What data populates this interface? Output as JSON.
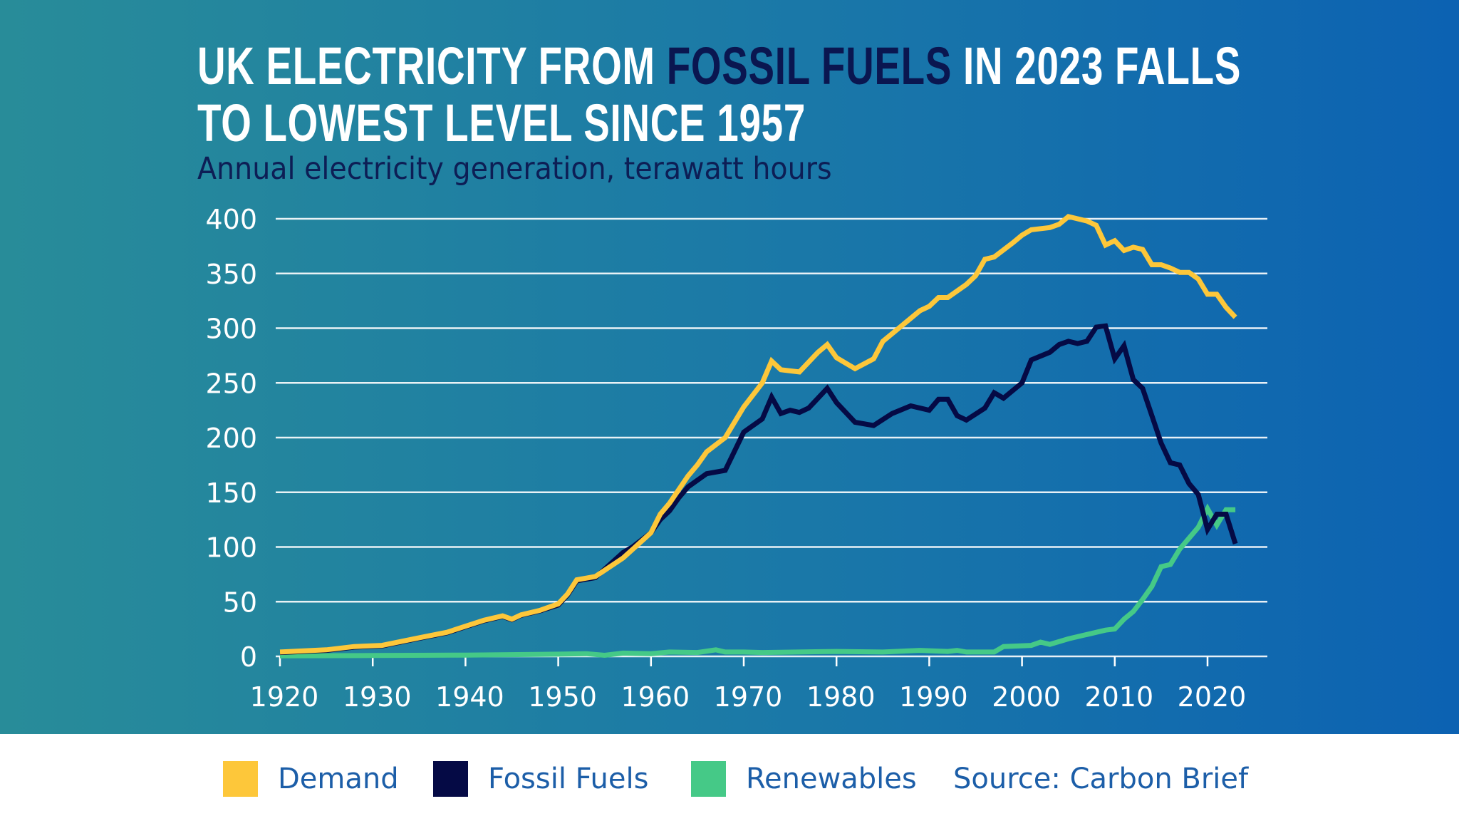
{
  "title": {
    "line1_pre": "UK ELECTRICITY FROM ",
    "line1_highlight": "FOSSIL FUELS",
    "line1_post": " IN 2023 FALLS",
    "line2": "TO LOWEST LEVEL SINCE 1957"
  },
  "subtitle": "Annual electricity generation, terawatt hours",
  "source": "Source: Carbon Brief",
  "colors": {
    "background_left": "#288c99",
    "background_right": "#0c62b2",
    "highlight": "#0a1650",
    "legend_text": "#1c5ea8"
  },
  "chart_data": {
    "type": "line",
    "title": "UK ELECTRICITY FROM FOSSIL FUELS IN 2023 FALLS TO LOWEST LEVEL SINCE 1957",
    "subtitle": "Annual electricity generation, terawatt hours",
    "xlabel": "",
    "ylabel": "",
    "xlim": [
      1920,
      2023
    ],
    "ylim": [
      0,
      400
    ],
    "xticks": [
      1920,
      1930,
      1940,
      1950,
      1960,
      1970,
      1980,
      1990,
      2000,
      2010,
      2020
    ],
    "yticks": [
      0,
      50,
      100,
      150,
      200,
      250,
      300,
      350,
      400
    ],
    "grid": "horizontal",
    "legend": "bottom",
    "series": [
      {
        "name": "Renewables",
        "color": "#45c987",
        "points": [
          [
            1920,
            0.5
          ],
          [
            1930,
            0.8
          ],
          [
            1940,
            1.2
          ],
          [
            1950,
            2
          ],
          [
            1953,
            2.5
          ],
          [
            1955,
            1
          ],
          [
            1957,
            3
          ],
          [
            1960,
            2.5
          ],
          [
            1962,
            4
          ],
          [
            1965,
            3.5
          ],
          [
            1967,
            6
          ],
          [
            1968,
            4
          ],
          [
            1970,
            4
          ],
          [
            1972,
            3.5
          ],
          [
            1980,
            4.5
          ],
          [
            1985,
            4
          ],
          [
            1989,
            5.5
          ],
          [
            1992,
            4.5
          ],
          [
            1993,
            5.5
          ],
          [
            1994,
            4
          ],
          [
            1997,
            4
          ],
          [
            1998,
            9
          ],
          [
            2001,
            10
          ],
          [
            2002,
            13
          ],
          [
            2003,
            11
          ],
          [
            2005,
            16
          ],
          [
            2007,
            20
          ],
          [
            2009,
            24
          ],
          [
            2010,
            25
          ],
          [
            2011,
            34
          ],
          [
            2012,
            41
          ],
          [
            2013,
            52
          ],
          [
            2014,
            64
          ],
          [
            2015,
            82
          ],
          [
            2016,
            84
          ],
          [
            2017,
            98
          ],
          [
            2018,
            108
          ],
          [
            2019,
            118
          ],
          [
            2020,
            135
          ],
          [
            2021,
            120
          ],
          [
            2022,
            134
          ],
          [
            2023,
            134
          ]
        ]
      },
      {
        "name": "Fossil Fuels",
        "color": "#050a45",
        "points": [
          [
            1920,
            3.5
          ],
          [
            1925,
            5.5
          ],
          [
            1928,
            8.5
          ],
          [
            1931,
            9.5
          ],
          [
            1935,
            16.5
          ],
          [
            1938,
            21.5
          ],
          [
            1942,
            32.5
          ],
          [
            1944,
            36.5
          ],
          [
            1945,
            33.5
          ],
          [
            1946,
            37.5
          ],
          [
            1948,
            41.5
          ],
          [
            1950,
            47
          ],
          [
            1951,
            56
          ],
          [
            1952,
            69
          ],
          [
            1954,
            72
          ],
          [
            1957,
            95
          ],
          [
            1958,
            100
          ],
          [
            1960,
            113
          ],
          [
            1961,
            125
          ],
          [
            1962,
            133
          ],
          [
            1963,
            145
          ],
          [
            1964,
            155
          ],
          [
            1966,
            167
          ],
          [
            1968,
            170
          ],
          [
            1970,
            205
          ],
          [
            1972,
            217
          ],
          [
            1973,
            237
          ],
          [
            1974,
            222
          ],
          [
            1975,
            225
          ],
          [
            1976,
            223
          ],
          [
            1977,
            227
          ],
          [
            1979,
            245
          ],
          [
            1980,
            232
          ],
          [
            1982,
            214
          ],
          [
            1984,
            211
          ],
          [
            1986,
            222
          ],
          [
            1988,
            229
          ],
          [
            1990,
            225
          ],
          [
            1991,
            235
          ],
          [
            1992,
            235
          ],
          [
            1993,
            220
          ],
          [
            1994,
            216
          ],
          [
            1996,
            227
          ],
          [
            1997,
            241
          ],
          [
            1998,
            236
          ],
          [
            2000,
            250
          ],
          [
            2001,
            271
          ],
          [
            2003,
            278
          ],
          [
            2004,
            285
          ],
          [
            2005,
            288
          ],
          [
            2006,
            286
          ],
          [
            2007,
            288
          ],
          [
            2008,
            301
          ],
          [
            2009,
            302
          ],
          [
            2010,
            272
          ],
          [
            2011,
            284
          ],
          [
            2012,
            253
          ],
          [
            2013,
            245
          ],
          [
            2014,
            220
          ],
          [
            2015,
            195
          ],
          [
            2016,
            177
          ],
          [
            2017,
            175
          ],
          [
            2018,
            158
          ],
          [
            2019,
            148
          ],
          [
            2020,
            116
          ],
          [
            2021,
            130
          ],
          [
            2022,
            130
          ],
          [
            2023,
            103
          ]
        ]
      },
      {
        "name": "Demand",
        "color": "#fdc73a",
        "points": [
          [
            1920,
            4
          ],
          [
            1925,
            6
          ],
          [
            1928,
            9
          ],
          [
            1931,
            10
          ],
          [
            1935,
            17
          ],
          [
            1938,
            22
          ],
          [
            1942,
            33
          ],
          [
            1944,
            37
          ],
          [
            1945,
            34
          ],
          [
            1946,
            38
          ],
          [
            1948,
            42
          ],
          [
            1950,
            48
          ],
          [
            1951,
            57
          ],
          [
            1952,
            70
          ],
          [
            1954,
            73
          ],
          [
            1957,
            90
          ],
          [
            1960,
            113
          ],
          [
            1961,
            130
          ],
          [
            1962,
            140
          ],
          [
            1964,
            165
          ],
          [
            1965,
            175
          ],
          [
            1966,
            187
          ],
          [
            1968,
            200
          ],
          [
            1970,
            228
          ],
          [
            1972,
            250
          ],
          [
            1973,
            270
          ],
          [
            1974,
            262
          ],
          [
            1976,
            260
          ],
          [
            1978,
            278
          ],
          [
            1979,
            285
          ],
          [
            1980,
            273
          ],
          [
            1982,
            263
          ],
          [
            1984,
            272
          ],
          [
            1985,
            288
          ],
          [
            1987,
            302
          ],
          [
            1989,
            316
          ],
          [
            1990,
            320
          ],
          [
            1991,
            328
          ],
          [
            1992,
            328
          ],
          [
            1994,
            340
          ],
          [
            1995,
            348
          ],
          [
            1996,
            363
          ],
          [
            1997,
            365
          ],
          [
            1999,
            378
          ],
          [
            2000,
            385
          ],
          [
            2001,
            390
          ],
          [
            2003,
            392
          ],
          [
            2004,
            395
          ],
          [
            2005,
            402
          ],
          [
            2006,
            400
          ],
          [
            2007,
            398
          ],
          [
            2008,
            394
          ],
          [
            2009,
            376
          ],
          [
            2010,
            380
          ],
          [
            2011,
            371
          ],
          [
            2012,
            374
          ],
          [
            2013,
            372
          ],
          [
            2014,
            358
          ],
          [
            2015,
            358
          ],
          [
            2016,
            355
          ],
          [
            2017,
            351
          ],
          [
            2018,
            351
          ],
          [
            2019,
            345
          ],
          [
            2020,
            331
          ],
          [
            2021,
            331
          ],
          [
            2022,
            319
          ],
          [
            2023,
            310
          ]
        ]
      }
    ]
  },
  "legend": [
    {
      "label": "Demand",
      "color": "#fdc73a"
    },
    {
      "label": "Fossil Fuels",
      "color": "#050a45"
    },
    {
      "label": "Renewables",
      "color": "#45c987"
    }
  ]
}
